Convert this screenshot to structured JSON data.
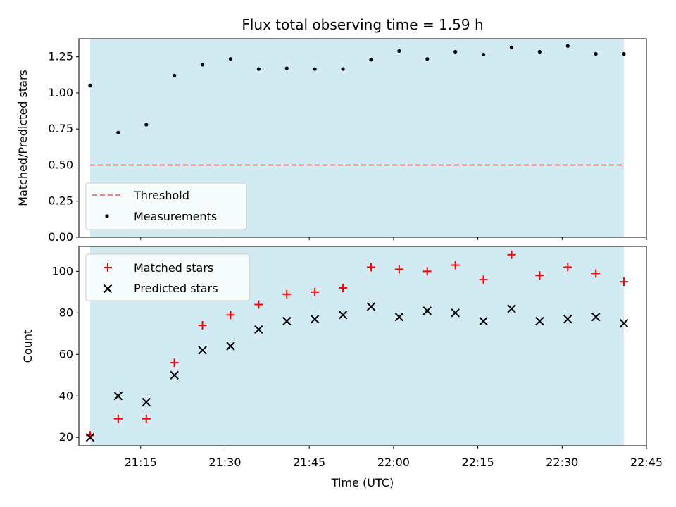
{
  "chart_data": [
    {
      "type": "scatter",
      "title": "Flux total observing time = 1.59 h",
      "xlabel": "",
      "ylabel": "Matched/Predicted stars",
      "ylim": [
        0.0,
        1.375
      ],
      "yticks": [
        "0.00",
        "0.25",
        "0.50",
        "0.75",
        "1.00",
        "1.25"
      ],
      "shaded_span": [
        "21:06",
        "22:41"
      ],
      "shade_color": "#add8e6",
      "threshold": {
        "name": "Threshold",
        "value": 0.5,
        "x": [
          "21:06",
          "22:41"
        ],
        "color": "#f08080",
        "style": "dashed"
      },
      "series": [
        {
          "name": "Measurements",
          "marker": "dot",
          "color": "#000000",
          "x": [
            "21:06",
            "21:11",
            "21:16",
            "21:21",
            "21:26",
            "21:31",
            "21:36",
            "21:41",
            "21:46",
            "21:51",
            "21:56",
            "22:01",
            "22:06",
            "22:11",
            "22:16",
            "22:21",
            "22:26",
            "22:31",
            "22:36",
            "22:41"
          ],
          "y": [
            1.05,
            0.725,
            0.78,
            1.12,
            1.195,
            1.235,
            1.165,
            1.17,
            1.165,
            1.165,
            1.23,
            1.29,
            1.235,
            1.285,
            1.265,
            1.315,
            1.285,
            1.325,
            1.27,
            1.27
          ]
        }
      ],
      "legend_position": "lower-left",
      "grid": false
    },
    {
      "type": "scatter",
      "title": "",
      "xlabel": "Time (UTC)",
      "ylabel": "Count",
      "xlim": [
        "21:04",
        "22:45"
      ],
      "ylim": [
        16,
        112
      ],
      "xticks": [
        "21:15",
        "21:30",
        "21:45",
        "22:00",
        "22:15",
        "22:30",
        "22:45"
      ],
      "yticks": [
        "20",
        "40",
        "60",
        "80",
        "100"
      ],
      "shaded_span": [
        "21:06",
        "22:41"
      ],
      "shade_color": "#add8e6",
      "series": [
        {
          "name": "Matched stars",
          "marker": "plus",
          "color": "#ff0000",
          "x": [
            "21:06",
            "21:11",
            "21:16",
            "21:21",
            "21:26",
            "21:31",
            "21:36",
            "21:41",
            "21:46",
            "21:51",
            "21:56",
            "22:01",
            "22:06",
            "22:11",
            "22:16",
            "22:21",
            "22:26",
            "22:31",
            "22:36",
            "22:41"
          ],
          "y": [
            21,
            29,
            29,
            56,
            74,
            79,
            84,
            89,
            90,
            92,
            102,
            101,
            100,
            103,
            96,
            108,
            98,
            102,
            99,
            95
          ]
        },
        {
          "name": "Predicted stars",
          "marker": "x",
          "color": "#000000",
          "x": [
            "21:06",
            "21:11",
            "21:16",
            "21:21",
            "21:26",
            "21:31",
            "21:36",
            "21:41",
            "21:46",
            "21:51",
            "21:56",
            "22:01",
            "22:06",
            "22:11",
            "22:16",
            "22:21",
            "22:26",
            "22:31",
            "22:36",
            "22:41"
          ],
          "y": [
            20,
            40,
            37,
            50,
            62,
            64,
            72,
            76,
            77,
            79,
            83,
            78,
            81,
            80,
            76,
            82,
            76,
            77,
            78,
            75
          ]
        }
      ],
      "legend_position": "upper-left",
      "grid": false
    }
  ]
}
